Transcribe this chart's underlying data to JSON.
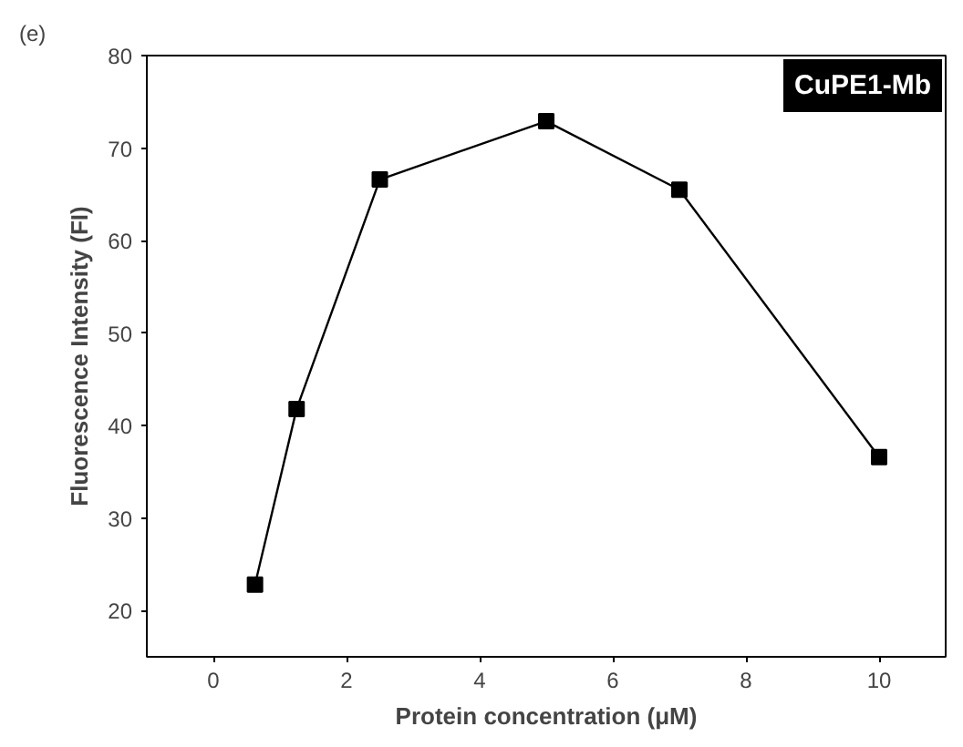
{
  "chart_data": {
    "type": "line",
    "xlabel": "Protein concentration (μM)",
    "ylabel": "Fluorescence Intensity (FI)",
    "x": [
      0.625,
      1.25,
      2.5,
      5,
      7,
      10
    ],
    "series": [
      {
        "color": "#000000",
        "values": [
          22.8,
          41.8,
          66.6,
          72.9,
          65.5,
          36.6
        ]
      }
    ],
    "xlim": [
      -1,
      11
    ],
    "ylim": [
      15,
      80
    ],
    "xticks": [
      0,
      2,
      4,
      6,
      8,
      10
    ],
    "yticks": [
      20,
      30,
      40,
      50,
      60,
      70,
      80
    ],
    "marker": "square",
    "line_style": "solid",
    "grid": false,
    "annotations": [
      "(e)",
      "CuPE1-Mb"
    ]
  }
}
